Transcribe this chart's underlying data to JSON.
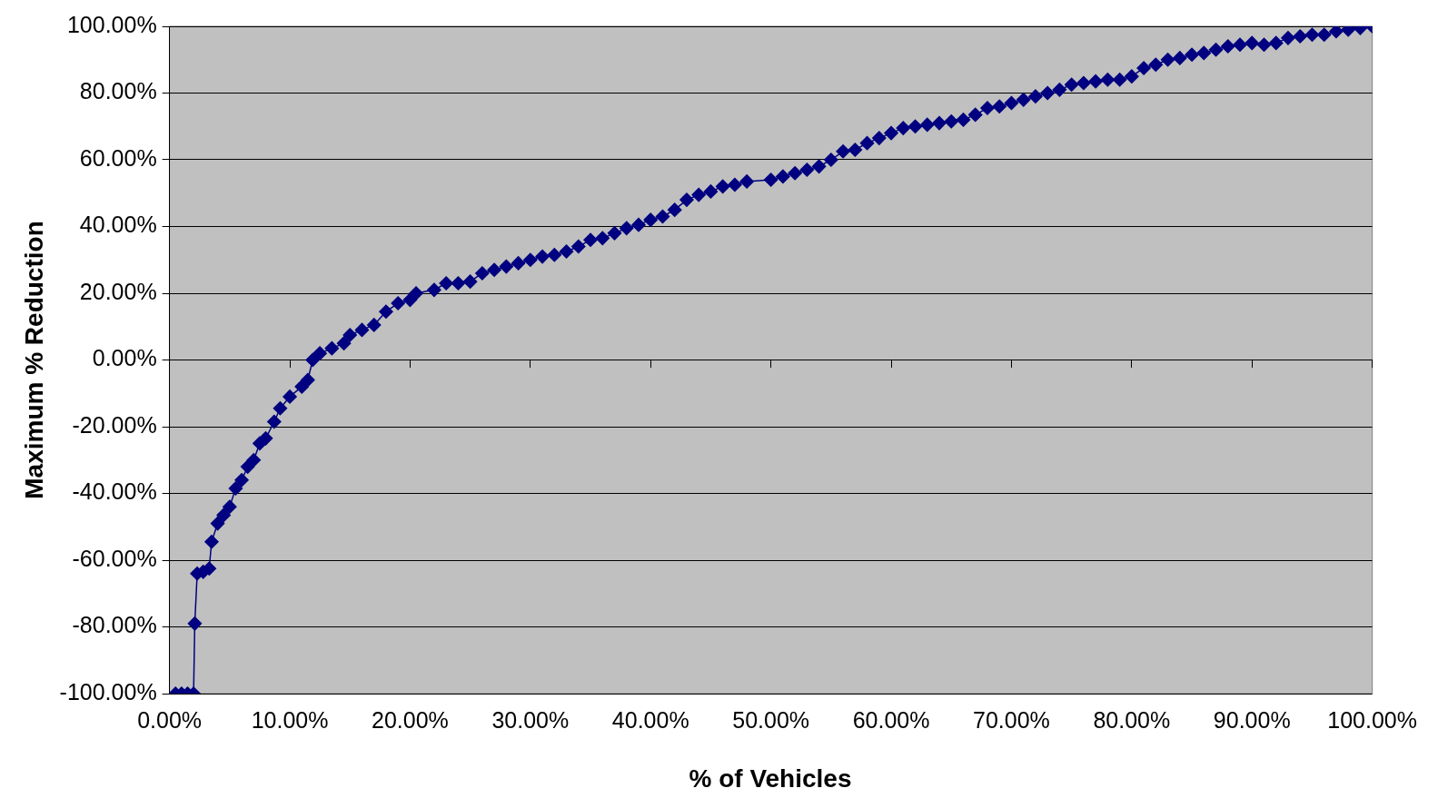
{
  "chart_data": {
    "type": "line",
    "xlabel": "% of Vehicles",
    "ylabel": "Maximum % Reduction",
    "x": [
      0.5,
      1,
      1.5,
      2,
      2.1,
      2.3,
      2.8,
      3.3,
      3.5,
      4,
      4.5,
      5,
      5.5,
      6,
      6.5,
      7,
      7.5,
      8,
      8.7,
      9.2,
      10,
      11,
      11.5,
      11.9,
      12.5,
      13.5,
      14.5,
      15,
      16,
      17,
      18,
      19,
      20,
      20.5,
      22,
      23,
      24,
      25,
      26,
      27,
      28,
      29,
      30,
      31,
      32,
      33,
      34,
      35,
      36,
      37,
      38,
      39,
      40,
      41,
      42,
      43,
      44,
      45,
      46,
      47,
      48,
      50,
      51,
      52,
      53,
      54,
      55,
      56,
      57,
      58,
      59,
      60,
      61,
      62,
      63,
      64,
      65,
      66,
      67,
      68,
      69,
      70,
      71,
      72,
      73,
      74,
      75,
      76,
      77,
      78,
      79,
      80,
      81,
      82,
      83,
      84,
      85,
      86,
      87,
      88,
      89,
      90,
      91,
      92,
      93,
      94,
      95,
      96,
      97,
      98,
      99,
      100
    ],
    "series": [
      {
        "color": "#000080",
        "values": [
          -100,
          -100,
          -100,
          -100,
          -79,
          -64,
          -63.5,
          -62.5,
          -54.5,
          -49,
          -46.5,
          -44,
          -38.5,
          -36,
          -32,
          -30,
          -25,
          -23.5,
          -18.5,
          -14.5,
          -11,
          -8,
          -6,
          0,
          2,
          3.5,
          5,
          7.5,
          9,
          10.5,
          14.5,
          17,
          18,
          20,
          21,
          23,
          23,
          23.5,
          26,
          27,
          28,
          29,
          30,
          31,
          31.5,
          32.5,
          34,
          36,
          36.5,
          38,
          39.5,
          40.5,
          42,
          43,
          45,
          48,
          49.5,
          50.5,
          52,
          52.5,
          53.5,
          54,
          55,
          56,
          57,
          58,
          60,
          62.5,
          63,
          65,
          66.5,
          68,
          69.5,
          70,
          70.5,
          71,
          71.5,
          72,
          73.5,
          75.5,
          76,
          77,
          78,
          79,
          80,
          81,
          82.5,
          83,
          83.5,
          84,
          84,
          85,
          87.5,
          88.5,
          90,
          90.5,
          91.5,
          92,
          93,
          94,
          94.5,
          95,
          94.5,
          95,
          96.5,
          97,
          97.5,
          97.5,
          98.5,
          99,
          99.5,
          100
        ]
      }
    ],
    "xlim": [
      0,
      100
    ],
    "ylim": [
      -100,
      100
    ],
    "xticks": [
      {
        "value": 0,
        "label": "0.00%"
      },
      {
        "value": 10,
        "label": "10.00%"
      },
      {
        "value": 20,
        "label": "20.00%"
      },
      {
        "value": 30,
        "label": "30.00%"
      },
      {
        "value": 40,
        "label": "40.00%"
      },
      {
        "value": 50,
        "label": "50.00%"
      },
      {
        "value": 60,
        "label": "60.00%"
      },
      {
        "value": 70,
        "label": "70.00%"
      },
      {
        "value": 80,
        "label": "80.00%"
      },
      {
        "value": 90,
        "label": "90.00%"
      },
      {
        "value": 100,
        "label": "100.00%"
      }
    ],
    "yticks": [
      {
        "value": -100,
        "label": "-100.00%"
      },
      {
        "value": -80,
        "label": "-80.00%"
      },
      {
        "value": -60,
        "label": "-60.00%"
      },
      {
        "value": -40,
        "label": "-40.00%"
      },
      {
        "value": -20,
        "label": "-20.00%"
      },
      {
        "value": 0,
        "label": "0.00%"
      },
      {
        "value": 20,
        "label": "20.00%"
      },
      {
        "value": 40,
        "label": "40.00%"
      },
      {
        "value": 60,
        "label": "60.00%"
      },
      {
        "value": 80,
        "label": "80.00%"
      },
      {
        "value": 100,
        "label": "100.00%"
      }
    ],
    "grid": "y",
    "legend": false,
    "marker": "diamond",
    "line_style": "solid"
  }
}
